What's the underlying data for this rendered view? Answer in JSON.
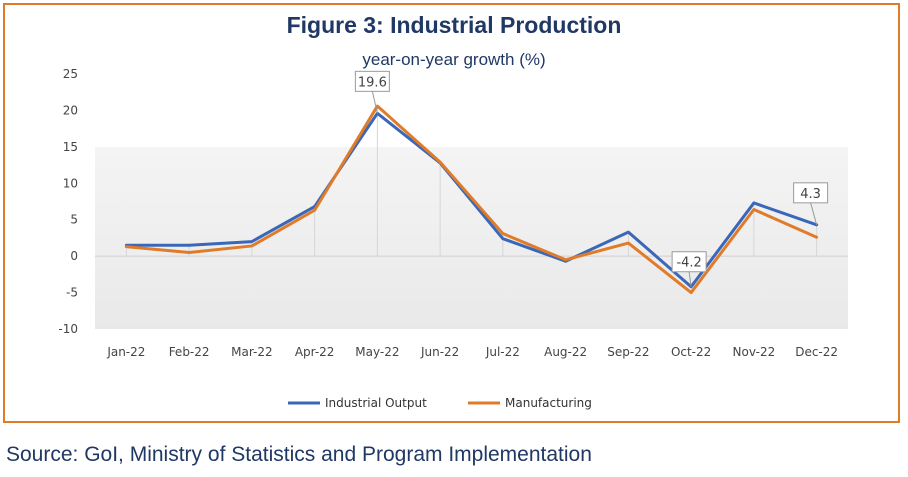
{
  "chart_data": {
    "type": "line",
    "title": "Figure 3: Industrial Production",
    "subtitle": "year-on-year growth (%)",
    "categories": [
      "Jan-22",
      "Feb-22",
      "Mar-22",
      "Apr-22",
      "May-22",
      "Jun-22",
      "Jul-22",
      "Aug-22",
      "Sep-22",
      "Oct-22",
      "Nov-22",
      "Dec-22"
    ],
    "yticks": [
      25,
      20,
      15,
      10,
      5,
      0,
      -5,
      -10
    ],
    "ylim": [
      -10,
      25
    ],
    "series": [
      {
        "name": "Industrial Output",
        "color": "#3a67b8",
        "values": [
          1.5,
          1.5,
          2.0,
          6.8,
          19.6,
          12.8,
          2.4,
          -0.7,
          3.3,
          -4.2,
          7.3,
          4.3
        ]
      },
      {
        "name": "Manufacturing",
        "color": "#e07b2a",
        "values": [
          1.3,
          0.5,
          1.4,
          6.3,
          20.6,
          12.9,
          3.1,
          -0.5,
          1.8,
          -5.0,
          6.4,
          2.6
        ]
      }
    ],
    "data_labels": [
      {
        "series": 0,
        "index": 4,
        "text": "19.6"
      },
      {
        "series": 0,
        "index": 9,
        "text": "-4.2"
      },
      {
        "series": 0,
        "index": 11,
        "text": "4.3"
      }
    ],
    "legend": "bottom"
  },
  "source": "Source: GoI, Ministry of Statistics and Program Implementation"
}
